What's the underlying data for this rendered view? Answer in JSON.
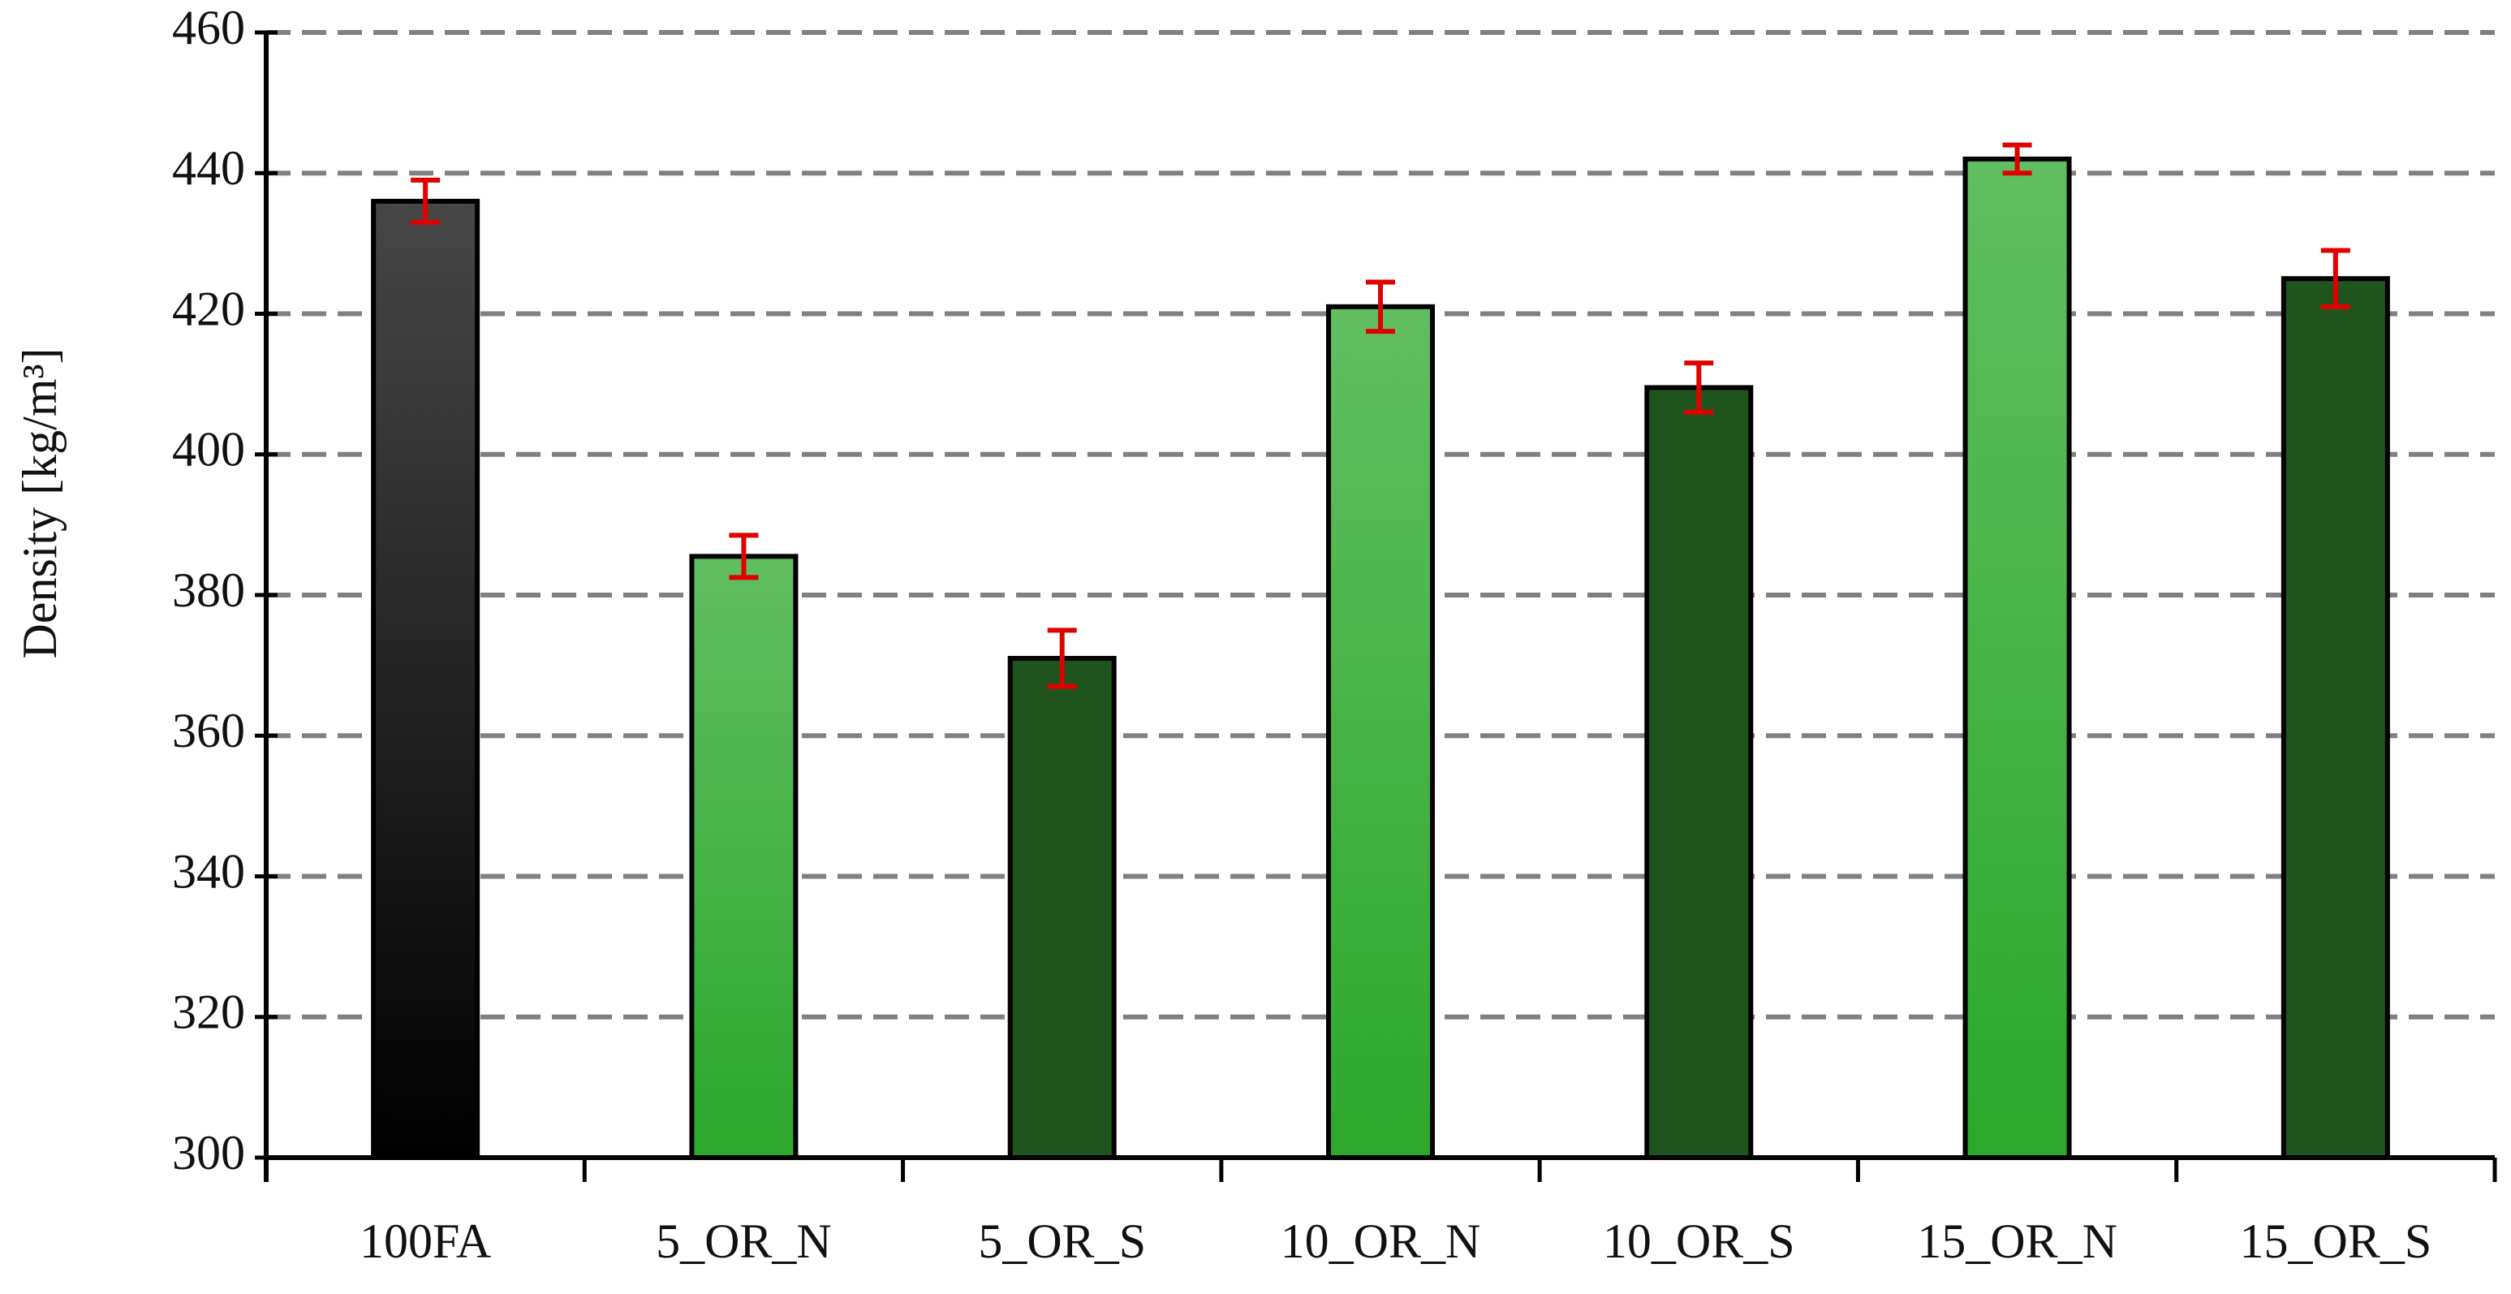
{
  "chart_data": {
    "type": "bar",
    "y_label": "Density [kg/m³]",
    "categories": [
      "100FA",
      "5_OR_N",
      "5_OR_S",
      "10_OR_N",
      "10_OR_S",
      "15_OR_N",
      "15_OR_S"
    ],
    "values": [
      436,
      385.5,
      371,
      421,
      409.5,
      442,
      425
    ],
    "errors": [
      3,
      3,
      4,
      3.5,
      3.5,
      2,
      4
    ],
    "colors": [
      "#000000",
      "#2ca82c",
      "#1f541c",
      "#2ca82c",
      "#1f541c",
      "#2ca82c",
      "#1f541c"
    ],
    "error_color": "#e00000",
    "ylim": [
      300,
      460
    ],
    "yticks": [
      300,
      320,
      340,
      360,
      380,
      400,
      420,
      440,
      460
    ],
    "grid": true
  }
}
